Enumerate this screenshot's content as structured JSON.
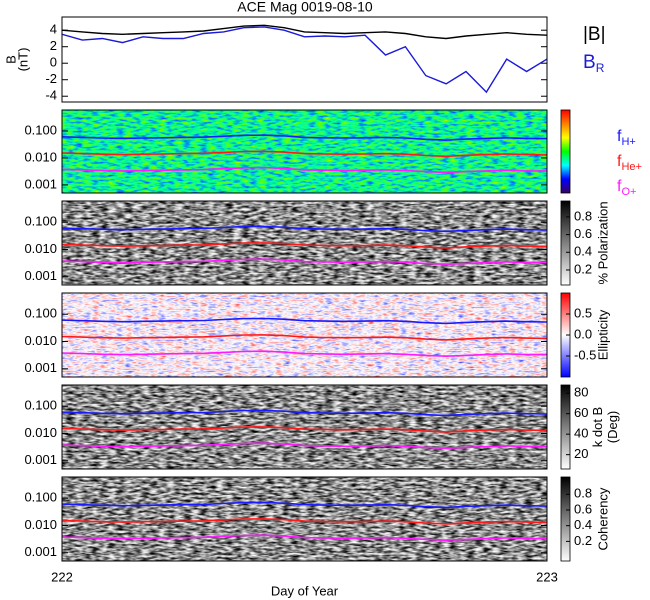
{
  "title": "ACE Mag 0019-08-10",
  "gyrofrequencies": {
    "x": [
      222,
      222.042,
      222.083,
      222.125,
      222.167,
      222.208,
      222.25,
      222.292,
      222.333,
      222.375,
      222.417,
      222.458,
      222.5,
      222.542,
      222.583,
      222.625,
      222.667,
      222.708,
      222.75,
      222.792,
      222.833,
      222.875,
      222.917,
      222.958,
      223
    ],
    "series": [
      {
        "name": "f",
        "subscript": "H+",
        "color": "#1a1aff",
        "values": [
          0.061,
          0.058,
          0.055,
          0.053,
          0.055,
          0.056,
          0.058,
          0.059,
          0.064,
          0.069,
          0.07,
          0.066,
          0.058,
          0.056,
          0.055,
          0.056,
          0.058,
          0.055,
          0.049,
          0.046,
          0.05,
          0.053,
          0.056,
          0.053,
          0.052
        ]
      },
      {
        "name": "f",
        "subscript": "He+",
        "color": "#ff1a1a",
        "values": [
          0.0153,
          0.0145,
          0.0138,
          0.0133,
          0.0138,
          0.014,
          0.0145,
          0.0148,
          0.016,
          0.0173,
          0.0175,
          0.0165,
          0.0145,
          0.014,
          0.0138,
          0.014,
          0.0145,
          0.0138,
          0.0123,
          0.0115,
          0.0125,
          0.0133,
          0.014,
          0.0133,
          0.013
        ]
      },
      {
        "name": "f",
        "subscript": "O+",
        "color": "#ff1aff",
        "values": [
          0.0038,
          0.0036,
          0.0034,
          0.0033,
          0.0034,
          0.0035,
          0.0036,
          0.0037,
          0.004,
          0.0043,
          0.0044,
          0.0041,
          0.0036,
          0.0035,
          0.0034,
          0.0035,
          0.0036,
          0.0034,
          0.0031,
          0.0029,
          0.0031,
          0.0033,
          0.0035,
          0.0033,
          0.0033
        ]
      }
    ]
  },
  "chart_data": [
    {
      "type": "line",
      "ylabel": [
        "B",
        "(nT)"
      ],
      "xlim": [
        222,
        223
      ],
      "ylim": [
        -4.7,
        5.6
      ],
      "yticks": [
        -4,
        -2,
        0,
        2,
        4
      ],
      "x": [
        222,
        222.042,
        222.083,
        222.125,
        222.167,
        222.208,
        222.25,
        222.292,
        222.333,
        222.375,
        222.417,
        222.458,
        222.5,
        222.542,
        222.583,
        222.625,
        222.667,
        222.708,
        222.75,
        222.792,
        222.833,
        222.875,
        222.917,
        222.958,
        223
      ],
      "series": [
        {
          "name": "|B|",
          "color": "#000000",
          "values": [
            4.0,
            3.8,
            3.6,
            3.5,
            3.6,
            3.7,
            3.8,
            3.9,
            4.2,
            4.5,
            4.6,
            4.3,
            3.8,
            3.7,
            3.6,
            3.7,
            3.8,
            3.6,
            3.2,
            3.0,
            3.3,
            3.5,
            3.7,
            3.5,
            3.4
          ]
        },
        {
          "name": "B",
          "subscript": "R",
          "color": "#1a1ad8",
          "values": [
            3.5,
            2.8,
            3.0,
            2.5,
            3.2,
            3.0,
            3.0,
            3.6,
            3.8,
            4.3,
            4.4,
            4.0,
            3.2,
            3.3,
            3.2,
            3.4,
            1.0,
            2.0,
            -1.5,
            -2.5,
            -1.0,
            -3.5,
            0.5,
            -1.0,
            0.5
          ]
        }
      ]
    },
    {
      "type": "spectrogram",
      "colormap": "rainbow",
      "log_y": true,
      "xlim": [
        222,
        223
      ],
      "ylim": [
        0.0005,
        0.6
      ],
      "yticks": [
        {
          "value": 0.1,
          "label": "0.100"
        },
        {
          "value": 0.01,
          "label": "0.010"
        },
        {
          "value": 0.001,
          "label": "0.001"
        }
      ],
      "legend": true
    },
    {
      "type": "spectrogram",
      "colormap": "gray",
      "log_y": true,
      "xlim": [
        222,
        223
      ],
      "ylim": [
        0.0005,
        0.6
      ],
      "yticks": [
        {
          "value": 0.1,
          "label": "0.100"
        },
        {
          "value": 0.01,
          "label": "0.010"
        },
        {
          "value": 0.001,
          "label": "0.001"
        }
      ],
      "colorbar": {
        "label": [
          "% Polarization"
        ],
        "lim": [
          0.03,
          0.98
        ],
        "ticks": [
          0.2,
          0.4,
          0.6,
          0.8
        ]
      }
    },
    {
      "type": "spectrogram",
      "colormap": "bwr",
      "log_y": true,
      "xlim": [
        222,
        223
      ],
      "ylim": [
        0.0005,
        0.6
      ],
      "yticks": [
        {
          "value": 0.1,
          "label": "0.100"
        },
        {
          "value": 0.01,
          "label": "0.010"
        },
        {
          "value": 0.001,
          "label": "0.001"
        }
      ],
      "colorbar": {
        "label": [
          "Ellipticity"
        ],
        "lim": [
          -1,
          1
        ],
        "ticks": [
          -0.5,
          {
            "value": 0,
            "label": "0.0"
          },
          0.5
        ]
      }
    },
    {
      "type": "spectrogram",
      "colormap": "gray",
      "log_y": true,
      "xlim": [
        222,
        223
      ],
      "ylim": [
        0.0005,
        0.6
      ],
      "yticks": [
        {
          "value": 0.1,
          "label": "0.100"
        },
        {
          "value": 0.01,
          "label": "0.010"
        },
        {
          "value": 0.001,
          "label": "0.001"
        }
      ],
      "colorbar": {
        "label": [
          "k dot B",
          "(Deg)"
        ],
        "lim": [
          6,
          88
        ],
        "ticks": [
          20,
          40,
          60,
          80
        ]
      }
    },
    {
      "type": "spectrogram",
      "colormap": "gray",
      "log_y": true,
      "xlim": [
        222,
        223
      ],
      "ylim": [
        0.0005,
        0.6
      ],
      "yticks": [
        {
          "value": 0.1,
          "label": "0.100"
        },
        {
          "value": 0.01,
          "label": "0.010"
        },
        {
          "value": 0.001,
          "label": "0.001"
        }
      ],
      "colorbar": {
        "label": [
          "Coherency"
        ],
        "lim": [
          -0.05,
          1.02
        ],
        "ticks": [
          0.2,
          0.4,
          0.6,
          0.8
        ]
      },
      "xticks": [
        222,
        223
      ],
      "xlabel": "Day of Year"
    }
  ]
}
